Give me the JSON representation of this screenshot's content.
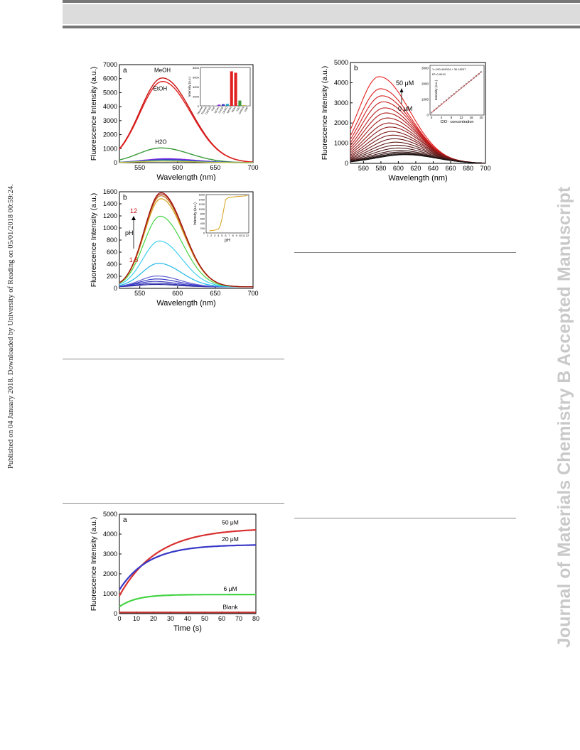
{
  "sidenote": "Published on 04 January 2018. Downloaded by University of Reading on 05/01/2018 00:59:24.",
  "watermark": "Journal of Materials Chemistry B Accepted Manuscript",
  "colors": {
    "red": "#e02020",
    "dark_red": "#b01818",
    "green": "#3a9a3a",
    "blue": "#3838c8",
    "lime": "#44d444",
    "gold": "#d4a017"
  },
  "chart_data": [
    {
      "id": "solvent",
      "type": "line",
      "panel_label": "a",
      "xlabel": "Wavelength (nm)",
      "ylabel": "Fluorescence Intensity (a.u.)",
      "xlim": [
        523,
        700
      ],
      "ylim": [
        0,
        7000
      ],
      "xticks": [
        550,
        600,
        650,
        700
      ],
      "yticks": [
        0,
        1000,
        2000,
        3000,
        4000,
        5000,
        6000,
        7000
      ],
      "annotations": [
        "MeOH",
        "EtOH",
        "H2O"
      ],
      "series": [
        {
          "name": "MeOH",
          "peak": 580,
          "max": 6050,
          "color": "#c81010"
        },
        {
          "name": "EtOH",
          "peak": 580,
          "max": 5800,
          "color": "#e02020"
        },
        {
          "name": "H2O",
          "peak": 578,
          "max": 1050,
          "color": "#3a9a3a"
        },
        {
          "peak": 585,
          "max": 280,
          "color": "#8a2be2"
        },
        {
          "peak": 585,
          "max": 220,
          "color": "#3838c8"
        },
        {
          "peak": 580,
          "max": 150,
          "color": "#20a0c0"
        },
        {
          "peak": 580,
          "max": 110,
          "color": "#c0c040"
        }
      ],
      "inset": {
        "ylabel": "Intensity (a.u.)",
        "yticks": [
          0,
          2000,
          4000,
          6000,
          8000
        ],
        "categories": [
          "Hexane",
          "Toluene",
          "CH2Cl2",
          "THF",
          "EtOAc",
          "CHCl3",
          "DMSO",
          "MeOH",
          "EtOH",
          "H2O",
          "CH3CN",
          "DMF"
        ],
        "values": [
          20,
          30,
          60,
          80,
          250,
          350,
          400,
          7200,
          6900,
          1100,
          160,
          90
        ],
        "colors": [
          "#bbbbbb",
          "#bbbbbb",
          "#bbbbbb",
          "#bbbbbb",
          "#8a2be2",
          "#3838c8",
          "#20a0c0",
          "#e02020",
          "#e02020",
          "#3a9a3a",
          "#c0c040",
          "#bbbbbb"
        ]
      }
    },
    {
      "id": "ph",
      "type": "line",
      "panel_label": "b",
      "xlabel": "Wavelength (nm)",
      "ylabel": "Fluorescence Intensity (a.u.)",
      "xlim": [
        523,
        700
      ],
      "ylim": [
        0,
        1600
      ],
      "xticks": [
        550,
        600,
        650,
        700
      ],
      "yticks": [
        0,
        200,
        400,
        600,
        800,
        1000,
        1200,
        1400,
        1600
      ],
      "annotations": [
        "12",
        "pH",
        "1.5"
      ],
      "series": [
        {
          "peak": 570,
          "max": 40,
          "color": "#2020a0"
        },
        {
          "peak": 570,
          "max": 60,
          "color": "#3030b0"
        },
        {
          "peak": 570,
          "max": 90,
          "color": "#4040c0"
        },
        {
          "peak": 572,
          "max": 130,
          "color": "#3838c8"
        },
        {
          "peak": 573,
          "max": 180,
          "color": "#6060d0"
        },
        {
          "peak": 575,
          "max": 390,
          "color": "#20b8e8"
        },
        {
          "peak": 576,
          "max": 760,
          "color": "#40d0f0"
        },
        {
          "peak": 577,
          "max": 1170,
          "color": "#44d444"
        },
        {
          "peak": 578,
          "max": 1460,
          "color": "#d4a017"
        },
        {
          "peak": 578,
          "max": 1510,
          "color": "#c07020"
        },
        {
          "peak": 578,
          "max": 1540,
          "color": "#b03020"
        },
        {
          "peak": 578,
          "max": 1560,
          "color": "#a01010"
        }
      ],
      "inset": {
        "type": "line",
        "xlabel": "pH",
        "ylabel": "Intensity (a.u.)",
        "xticks": [
          1,
          2,
          3,
          4,
          5,
          6,
          7,
          8,
          9,
          10,
          11,
          12
        ],
        "yticks": [
          0,
          200,
          400,
          600,
          800,
          1000,
          1200,
          1400,
          1600
        ],
        "x": [
          1.5,
          2,
          3,
          4,
          4.5,
          5,
          5.5,
          6,
          6.5,
          7,
          8,
          9,
          10,
          11,
          12
        ],
        "y": [
          90,
          100,
          120,
          160,
          300,
          600,
          1000,
          1400,
          1450,
          1480,
          1500,
          1520,
          1530,
          1540,
          1560
        ]
      }
    },
    {
      "id": "titration",
      "type": "line",
      "panel_label": "b",
      "xlabel": "Wavelength (nm)",
      "ylabel": "Fluorescence Intensity (a.u.)",
      "xlim": [
        545,
        700
      ],
      "ylim": [
        0,
        5000
      ],
      "xticks": [
        560,
        580,
        600,
        620,
        640,
        660,
        680,
        700
      ],
      "yticks": [
        0,
        1000,
        2000,
        3000,
        4000,
        5000
      ],
      "annotations": [
        "50 μM",
        "0 μM"
      ],
      "series_peaks": [
        4300,
        3700,
        3350,
        3050,
        2750,
        2500,
        2250,
        2000,
        1800,
        1580,
        1400,
        1220,
        1050,
        900,
        760,
        640,
        560,
        500,
        460,
        430
      ],
      "inset": {
        "type": "scatter",
        "xlabel": "ClO⁻ concentration",
        "ylabel": "Intensity (a.u.)",
        "equation": "Y=150.449324 + 30.18207",
        "r2": "R²=0.9910",
        "xticks": [
          0,
          4,
          8,
          12,
          16,
          20
        ],
        "yticks": [
          0,
          1000,
          2000,
          3000
        ],
        "xlim": [
          0,
          20
        ],
        "ylim": [
          0,
          3000
        ],
        "x": [
          0,
          1,
          2,
          3,
          4,
          5,
          6,
          7,
          8,
          9,
          10,
          11,
          12,
          13,
          14,
          15,
          16,
          17,
          18,
          19,
          20
        ],
        "y": [
          150,
          300,
          420,
          580,
          700,
          850,
          950,
          1100,
          1230,
          1350,
          1500,
          1620,
          1750,
          1870,
          2000,
          2130,
          2230,
          2380,
          2500,
          2620,
          2760
        ]
      }
    },
    {
      "id": "kinetics",
      "type": "line",
      "panel_label": "a",
      "xlabel": "Time (s)",
      "ylabel": "Fluorescence Intensity (a.u.)",
      "xlim": [
        0,
        80
      ],
      "ylim": [
        0,
        5000
      ],
      "xticks": [
        0,
        10,
        20,
        30,
        40,
        50,
        60,
        70,
        80
      ],
      "yticks": [
        0,
        1000,
        2000,
        3000,
        4000,
        5000
      ],
      "series": [
        {
          "name": "50 μM",
          "start": 900,
          "plateau": 4300,
          "tau": 22,
          "color": "#d83030"
        },
        {
          "name": "20 μM",
          "start": 1200,
          "plateau": 3470,
          "tau": 17,
          "color": "#3838c8"
        },
        {
          "name": "6 μM",
          "start": 350,
          "plateau": 960,
          "tau": 10,
          "color": "#44d444"
        },
        {
          "name": "Blank",
          "start": 60,
          "plateau": 60,
          "tau": 10,
          "color": "#c03030"
        }
      ]
    }
  ]
}
